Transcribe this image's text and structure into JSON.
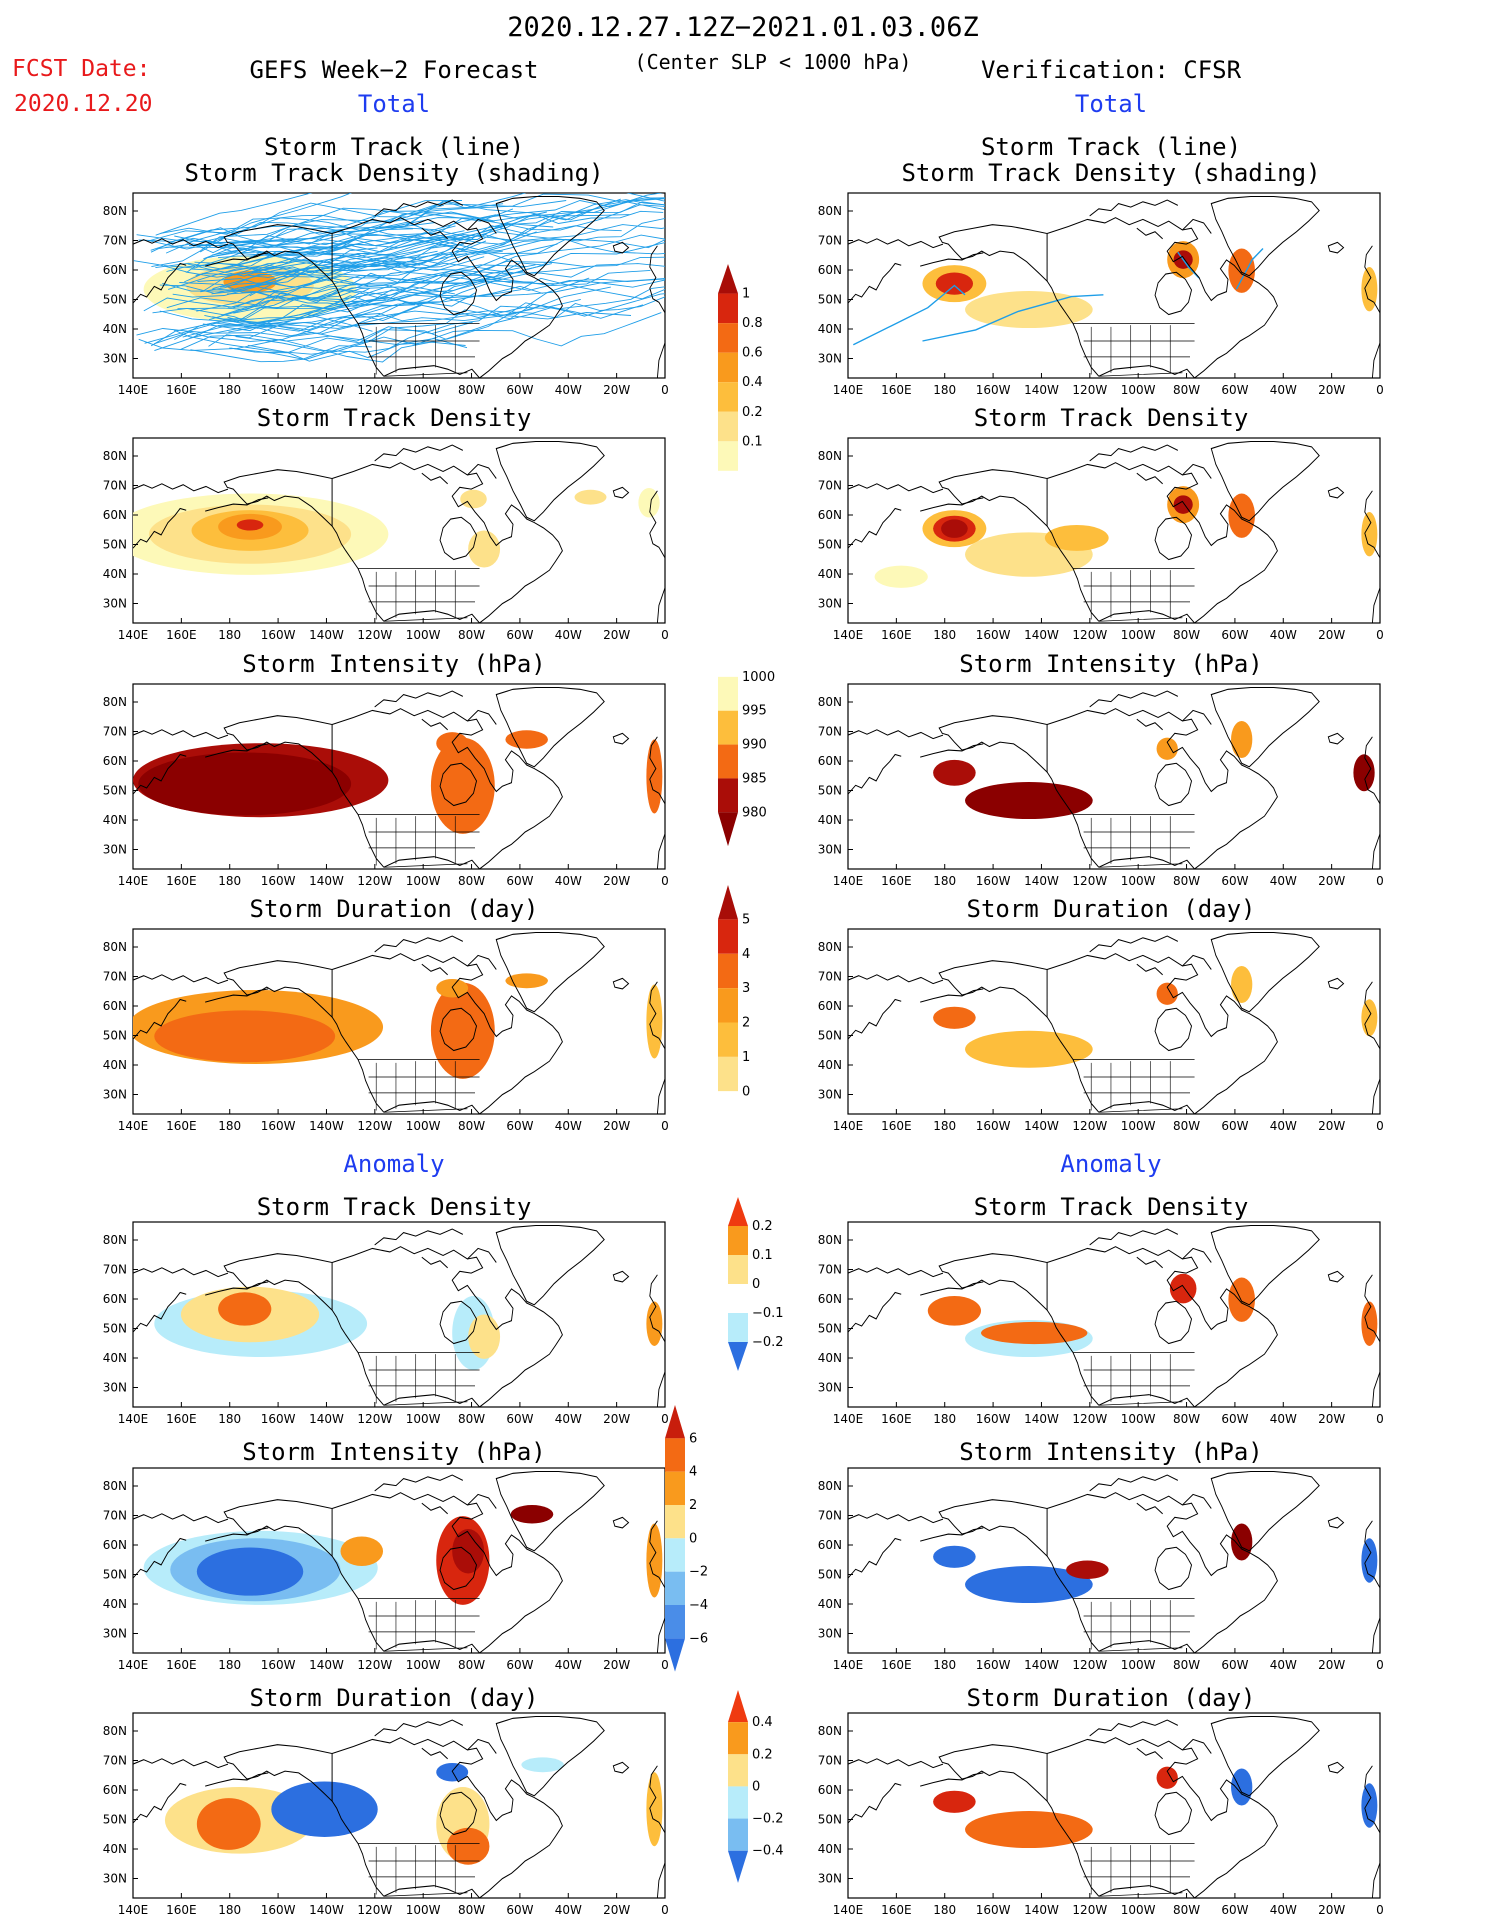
{
  "header": {
    "period": "2020.12.27.12Z−2021.01.03.06Z",
    "fcst_label": "FCST Date:",
    "fcst_date": "2020.12.20",
    "left_title": "GEFS Week−2 Forecast",
    "center_note": "(Center SLP < 1000 hPa)",
    "right_title": "Verification: CFSR",
    "total_label": "Total",
    "anomaly_label": "Anomaly"
  },
  "colors": {
    "yellow1": "#fdf9b8",
    "yellow2": "#fde18a",
    "orange1": "#fdbe3c",
    "orange2": "#f99a1d",
    "orange3": "#f36a14",
    "red1": "#d8260e",
    "red2": "#aa0d08",
    "darkred": "#8b0000",
    "blue_light": "#b7ecfa",
    "blue_mid": "#79bdf1",
    "blue_dark": "#2c6fe0",
    "track": "#1f9ee8"
  },
  "chart_data": [
    {
      "id": "fc-track",
      "panel": "forecast",
      "type": "heatmap",
      "title": "Storm Track (line)",
      "subtitle": "Storm Track Density (shading)"
    },
    {
      "id": "obs-track",
      "panel": "verification",
      "type": "heatmap",
      "title": "Storm Track (line)",
      "subtitle": "Storm Track Density (shading)"
    },
    {
      "id": "fc-density",
      "panel": "forecast",
      "type": "heatmap",
      "title": "Storm Track Density"
    },
    {
      "id": "obs-density",
      "panel": "verification",
      "type": "heatmap",
      "title": "Storm Track Density"
    },
    {
      "id": "fc-intensity",
      "panel": "forecast",
      "type": "heatmap",
      "title": "Storm Intensity (hPa)"
    },
    {
      "id": "obs-intensity",
      "panel": "verification",
      "type": "heatmap",
      "title": "Storm Intensity (hPa)"
    },
    {
      "id": "fc-duration",
      "panel": "forecast",
      "type": "heatmap",
      "title": "Storm Duration (day)"
    },
    {
      "id": "obs-duration",
      "panel": "verification",
      "type": "heatmap",
      "title": "Storm Duration (day)"
    },
    {
      "id": "fc-density-anom",
      "panel": "forecast",
      "type": "heatmap",
      "title": "Storm Track Density"
    },
    {
      "id": "obs-density-anom",
      "panel": "verification",
      "type": "heatmap",
      "title": "Storm Track Density"
    },
    {
      "id": "fc-intensity-anom",
      "panel": "forecast",
      "type": "heatmap",
      "title": "Storm Intensity (hPa)"
    },
    {
      "id": "obs-intensity-anom",
      "panel": "verification",
      "type": "heatmap",
      "title": "Storm Intensity (hPa)"
    },
    {
      "id": "fc-duration-anom",
      "panel": "forecast",
      "type": "heatmap",
      "title": "Storm Duration (day)"
    },
    {
      "id": "obs-duration-anom",
      "panel": "verification",
      "type": "heatmap",
      "title": "Storm Duration (day)"
    }
  ],
  "axes": {
    "xticks": [
      "140E",
      "160E",
      "180",
      "160W",
      "140W",
      "120W",
      "100W",
      "80W",
      "60W",
      "40W",
      "20W",
      "0"
    ],
    "yticks": [
      "80N",
      "70N",
      "60N",
      "50N",
      "40N",
      "30N"
    ],
    "xlim": [
      "140E",
      "0"
    ],
    "ylim": [
      "25N",
      "85N"
    ]
  },
  "colorbars": {
    "density": {
      "labels": [
        "1",
        "0.8",
        "0.6",
        "0.4",
        "0.2",
        "0.1"
      ]
    },
    "intensity": {
      "labels": [
        "1000",
        "995",
        "990",
        "985",
        "980"
      ]
    },
    "duration": {
      "labels": [
        "5",
        "4",
        "3",
        "2",
        "1",
        "0"
      ]
    },
    "density_anom": {
      "labels": [
        "0.2",
        "0.1",
        "0",
        "−0.1",
        "−0.2"
      ]
    },
    "intensity_anom": {
      "labels": [
        "6",
        "4",
        "2",
        "0",
        "−2",
        "−4",
        "−6"
      ]
    },
    "duration_anom": {
      "labels": [
        "0.4",
        "0.2",
        "0",
        "−0.2",
        "−0.4"
      ]
    }
  }
}
